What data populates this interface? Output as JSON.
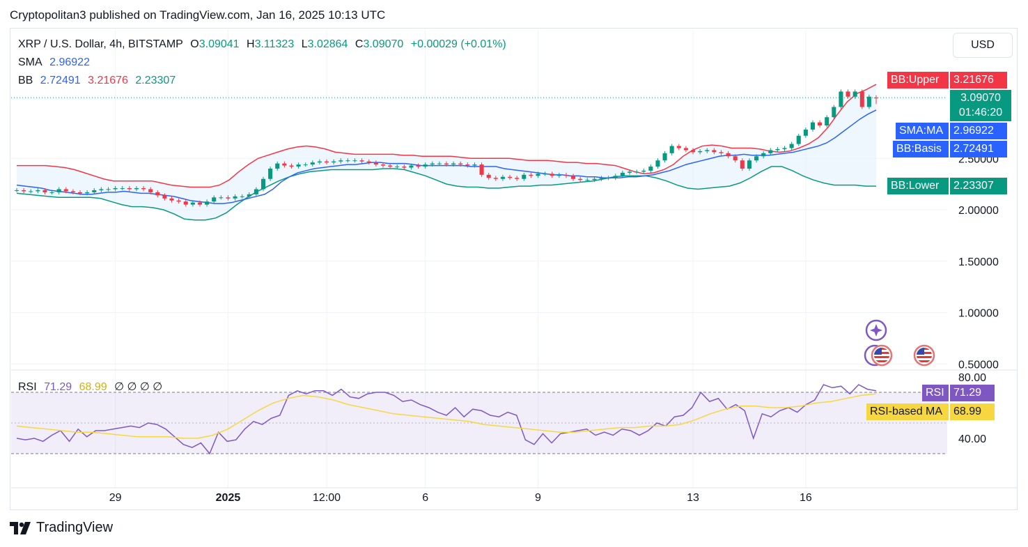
{
  "header": {
    "publisher": "Cryptopolitan3 published on TradingView.com, Jan 16, 2025 10:13 UTC"
  },
  "legend": {
    "symbol": "XRP / U.S. Dollar, 4h, BITSTAMP",
    "open_label": "O",
    "open": "3.09041",
    "high_label": "H",
    "high": "3.11323",
    "low_label": "L",
    "low": "3.02864",
    "close_label": "C",
    "close": "3.09070",
    "change": "+0.00029 (+0.01%)",
    "sma_label": "SMA",
    "sma_value": "2.96922",
    "bb_label": "BB",
    "bb_basis": "2.72491",
    "bb_upper": "3.21676",
    "bb_lower": "2.23307",
    "rsi_label": "RSI",
    "rsi_value": "71.29",
    "rsi_ma": "68.99",
    "rsi_extra": "∅ ∅ ∅ ∅"
  },
  "currency_button": "USD",
  "tags": {
    "bb_upper_label": "BB:Upper",
    "bb_upper_value": "3.21676",
    "last_price": "3.09070",
    "countdown": "01:46:20",
    "sma_label": "SMA:MA",
    "sma_value": "2.96922",
    "bb_basis_label": "BB:Basis",
    "bb_basis_value": "2.72491",
    "bb_lower_label": "BB:Lower",
    "bb_lower_value": "2.23307",
    "rsi_label": "RSI",
    "rsi_value": "71.29",
    "rsi_ma_label": "RSI-based MA",
    "rsi_ma_value": "68.99"
  },
  "footer": {
    "brand": "TradingView"
  },
  "colors": {
    "up": "#089981",
    "down": "#f23645",
    "sma": "#2962ff",
    "bb_upper": "#f23645",
    "bb_basis": "#2962ff",
    "bb_lower": "#089981",
    "rsi": "#7e57c2",
    "rsi_ma": "#f7d740",
    "bb_fill": "#e3f2fd"
  },
  "chart_data": {
    "type": "candlestick",
    "title": "XRP / U.S. Dollar, 4h, BITSTAMP",
    "price_axis": {
      "ticks": [
        "2.50000",
        "2.00000",
        "1.50000",
        "1.00000",
        "0.50000"
      ],
      "tick_values": [
        2.5,
        2.0,
        1.5,
        1.0,
        0.5
      ]
    },
    "time_axis": {
      "labels": [
        "29",
        "2025",
        "12:00",
        "6",
        "9",
        "13",
        "16"
      ],
      "bar_index": [
        14,
        30,
        44,
        58,
        74,
        96,
        112
      ]
    },
    "last_price": 3.0907,
    "ohlc_last": {
      "open": 3.09041,
      "high": 3.11323,
      "low": 3.02864,
      "close": 3.0907
    },
    "closes": [
      2.19,
      2.18,
      2.18,
      2.19,
      2.17,
      2.17,
      2.2,
      2.18,
      2.17,
      2.16,
      2.17,
      2.19,
      2.2,
      2.2,
      2.21,
      2.21,
      2.2,
      2.21,
      2.2,
      2.17,
      2.14,
      2.11,
      2.09,
      2.08,
      2.05,
      2.07,
      2.05,
      2.08,
      2.12,
      2.12,
      2.11,
      2.13,
      2.13,
      2.15,
      2.2,
      2.3,
      2.4,
      2.45,
      2.43,
      2.42,
      2.44,
      2.44,
      2.46,
      2.47,
      2.46,
      2.47,
      2.48,
      2.48,
      2.48,
      2.47,
      2.46,
      2.44,
      2.43,
      2.42,
      2.42,
      2.41,
      2.43,
      2.42,
      2.44,
      2.45,
      2.45,
      2.44,
      2.45,
      2.44,
      2.43,
      2.44,
      2.34,
      2.31,
      2.3,
      2.32,
      2.31,
      2.3,
      2.34,
      2.33,
      2.35,
      2.35,
      2.33,
      2.34,
      2.33,
      2.3,
      2.29,
      2.29,
      2.3,
      2.31,
      2.31,
      2.33,
      2.36,
      2.37,
      2.37,
      2.38,
      2.42,
      2.48,
      2.55,
      2.62,
      2.6,
      2.58,
      2.56,
      2.57,
      2.58,
      2.56,
      2.55,
      2.52,
      2.48,
      2.4,
      2.48,
      2.52,
      2.55,
      2.58,
      2.59,
      2.6,
      2.64,
      2.72,
      2.78,
      2.85,
      2.82,
      2.9,
      3.0,
      3.15,
      3.1,
      3.15,
      3.0,
      3.1,
      3.09
    ],
    "sma": [
      2.24,
      2.23,
      2.22,
      2.21,
      2.19,
      2.18,
      2.17,
      2.16,
      2.15,
      2.15,
      2.16,
      2.17,
      2.17,
      2.18,
      2.17,
      2.16,
      2.16,
      2.15,
      2.14,
      2.13,
      2.11,
      2.09,
      2.08,
      2.07,
      2.06,
      2.06,
      2.07,
      2.09,
      2.11,
      2.13,
      2.15,
      2.2,
      2.27,
      2.32,
      2.36,
      2.38,
      2.4,
      2.41,
      2.42,
      2.43,
      2.44,
      2.44,
      2.45,
      2.46,
      2.46,
      2.45,
      2.45,
      2.45,
      2.44,
      2.43,
      2.43,
      2.43,
      2.43,
      2.43,
      2.43,
      2.42,
      2.42,
      2.42,
      2.42,
      2.4,
      2.39,
      2.38,
      2.37,
      2.36,
      2.35,
      2.34,
      2.34,
      2.33,
      2.33,
      2.32,
      2.32,
      2.31,
      2.31,
      2.31,
      2.32,
      2.32,
      2.33,
      2.34,
      2.36,
      2.38,
      2.41,
      2.44,
      2.46,
      2.48,
      2.5,
      2.52,
      2.53,
      2.53,
      2.54,
      2.53,
      2.53,
      2.53,
      2.54,
      2.55,
      2.56,
      2.58,
      2.6,
      2.62,
      2.65,
      2.7,
      2.76,
      2.82,
      2.88,
      2.93,
      2.97
    ],
    "bb_upper": [
      2.43,
      2.43,
      2.43,
      2.43,
      2.42,
      2.41,
      2.39,
      2.36,
      2.33,
      2.3,
      2.28,
      2.28,
      2.28,
      2.28,
      2.28,
      2.26,
      2.24,
      2.23,
      2.22,
      2.22,
      2.22,
      2.24,
      2.29,
      2.37,
      2.44,
      2.5,
      2.53,
      2.56,
      2.59,
      2.61,
      2.62,
      2.61,
      2.59,
      2.56,
      2.55,
      2.54,
      2.54,
      2.54,
      2.54,
      2.54,
      2.53,
      2.53,
      2.52,
      2.52,
      2.52,
      2.52,
      2.51,
      2.5,
      2.5,
      2.5,
      2.5,
      2.5,
      2.49,
      2.48,
      2.48,
      2.48,
      2.47,
      2.46,
      2.46,
      2.45,
      2.45,
      2.44,
      2.43,
      2.4,
      2.37,
      2.35,
      2.36,
      2.39,
      2.44,
      2.52,
      2.58,
      2.62,
      2.63,
      2.62,
      2.6,
      2.6,
      2.6,
      2.59,
      2.57,
      2.56,
      2.57,
      2.6,
      2.64,
      2.7,
      2.8,
      2.93,
      3.05,
      3.13,
      3.17,
      3.22
    ],
    "bb_lower": [
      2.16,
      2.15,
      2.14,
      2.13,
      2.12,
      2.12,
      2.12,
      2.12,
      2.11,
      2.08,
      2.05,
      2.03,
      2.03,
      2.02,
      2.0,
      1.96,
      1.91,
      1.9,
      1.9,
      1.92,
      1.97,
      2.05,
      2.12,
      2.18,
      2.23,
      2.28,
      2.32,
      2.35,
      2.37,
      2.38,
      2.39,
      2.39,
      2.39,
      2.39,
      2.39,
      2.4,
      2.4,
      2.39,
      2.36,
      2.33,
      2.29,
      2.25,
      2.23,
      2.22,
      2.22,
      2.21,
      2.21,
      2.22,
      2.23,
      2.23,
      2.24,
      2.24,
      2.25,
      2.26,
      2.27,
      2.28,
      2.3,
      2.32,
      2.33,
      2.33,
      2.33,
      2.31,
      2.28,
      2.24,
      2.21,
      2.2,
      2.21,
      2.22,
      2.23,
      2.26,
      2.31,
      2.37,
      2.42,
      2.42,
      2.38,
      2.33,
      2.29,
      2.26,
      2.24,
      2.24,
      2.24,
      2.23,
      2.23
    ],
    "rsi": {
      "range": [
        20,
        80
      ],
      "ticks": [
        "80.00",
        "40.00"
      ],
      "tick_values": [
        80,
        40
      ],
      "bands": [
        70,
        30
      ],
      "values": [
        40,
        39,
        40,
        38,
        42,
        45,
        38,
        46,
        41,
        45,
        45,
        46,
        47,
        48,
        47,
        50,
        49,
        46,
        41,
        36,
        34,
        37,
        30,
        44,
        38,
        39,
        46,
        51,
        49,
        53,
        55,
        68,
        71,
        69,
        71,
        71,
        68,
        72,
        67,
        66,
        69,
        70,
        70,
        68,
        64,
        65,
        62,
        60,
        57,
        55,
        60,
        54,
        59,
        58,
        55,
        54,
        57,
        55,
        39,
        36,
        43,
        37,
        43,
        44,
        45,
        46,
        42,
        44,
        42,
        46,
        45,
        42,
        45,
        50,
        48,
        54,
        55,
        60,
        70,
        64,
        66,
        59,
        62,
        58,
        40,
        56,
        54,
        58,
        60,
        57,
        62,
        65,
        75,
        73,
        74,
        69,
        75,
        72,
        71
      ],
      "ma_values": [
        48,
        47,
        46,
        45,
        44,
        44,
        43,
        42,
        41,
        41,
        41,
        40,
        40,
        42,
        46,
        52,
        58,
        63,
        66,
        68,
        67,
        65,
        62,
        60,
        58,
        56,
        55,
        54,
        53,
        52,
        51,
        49,
        48,
        47,
        46,
        45,
        44,
        44,
        45,
        46,
        47,
        47,
        48,
        48,
        49,
        52,
        56,
        59,
        61,
        61,
        60,
        60,
        61,
        63,
        64,
        66,
        68,
        69
      ]
    }
  }
}
